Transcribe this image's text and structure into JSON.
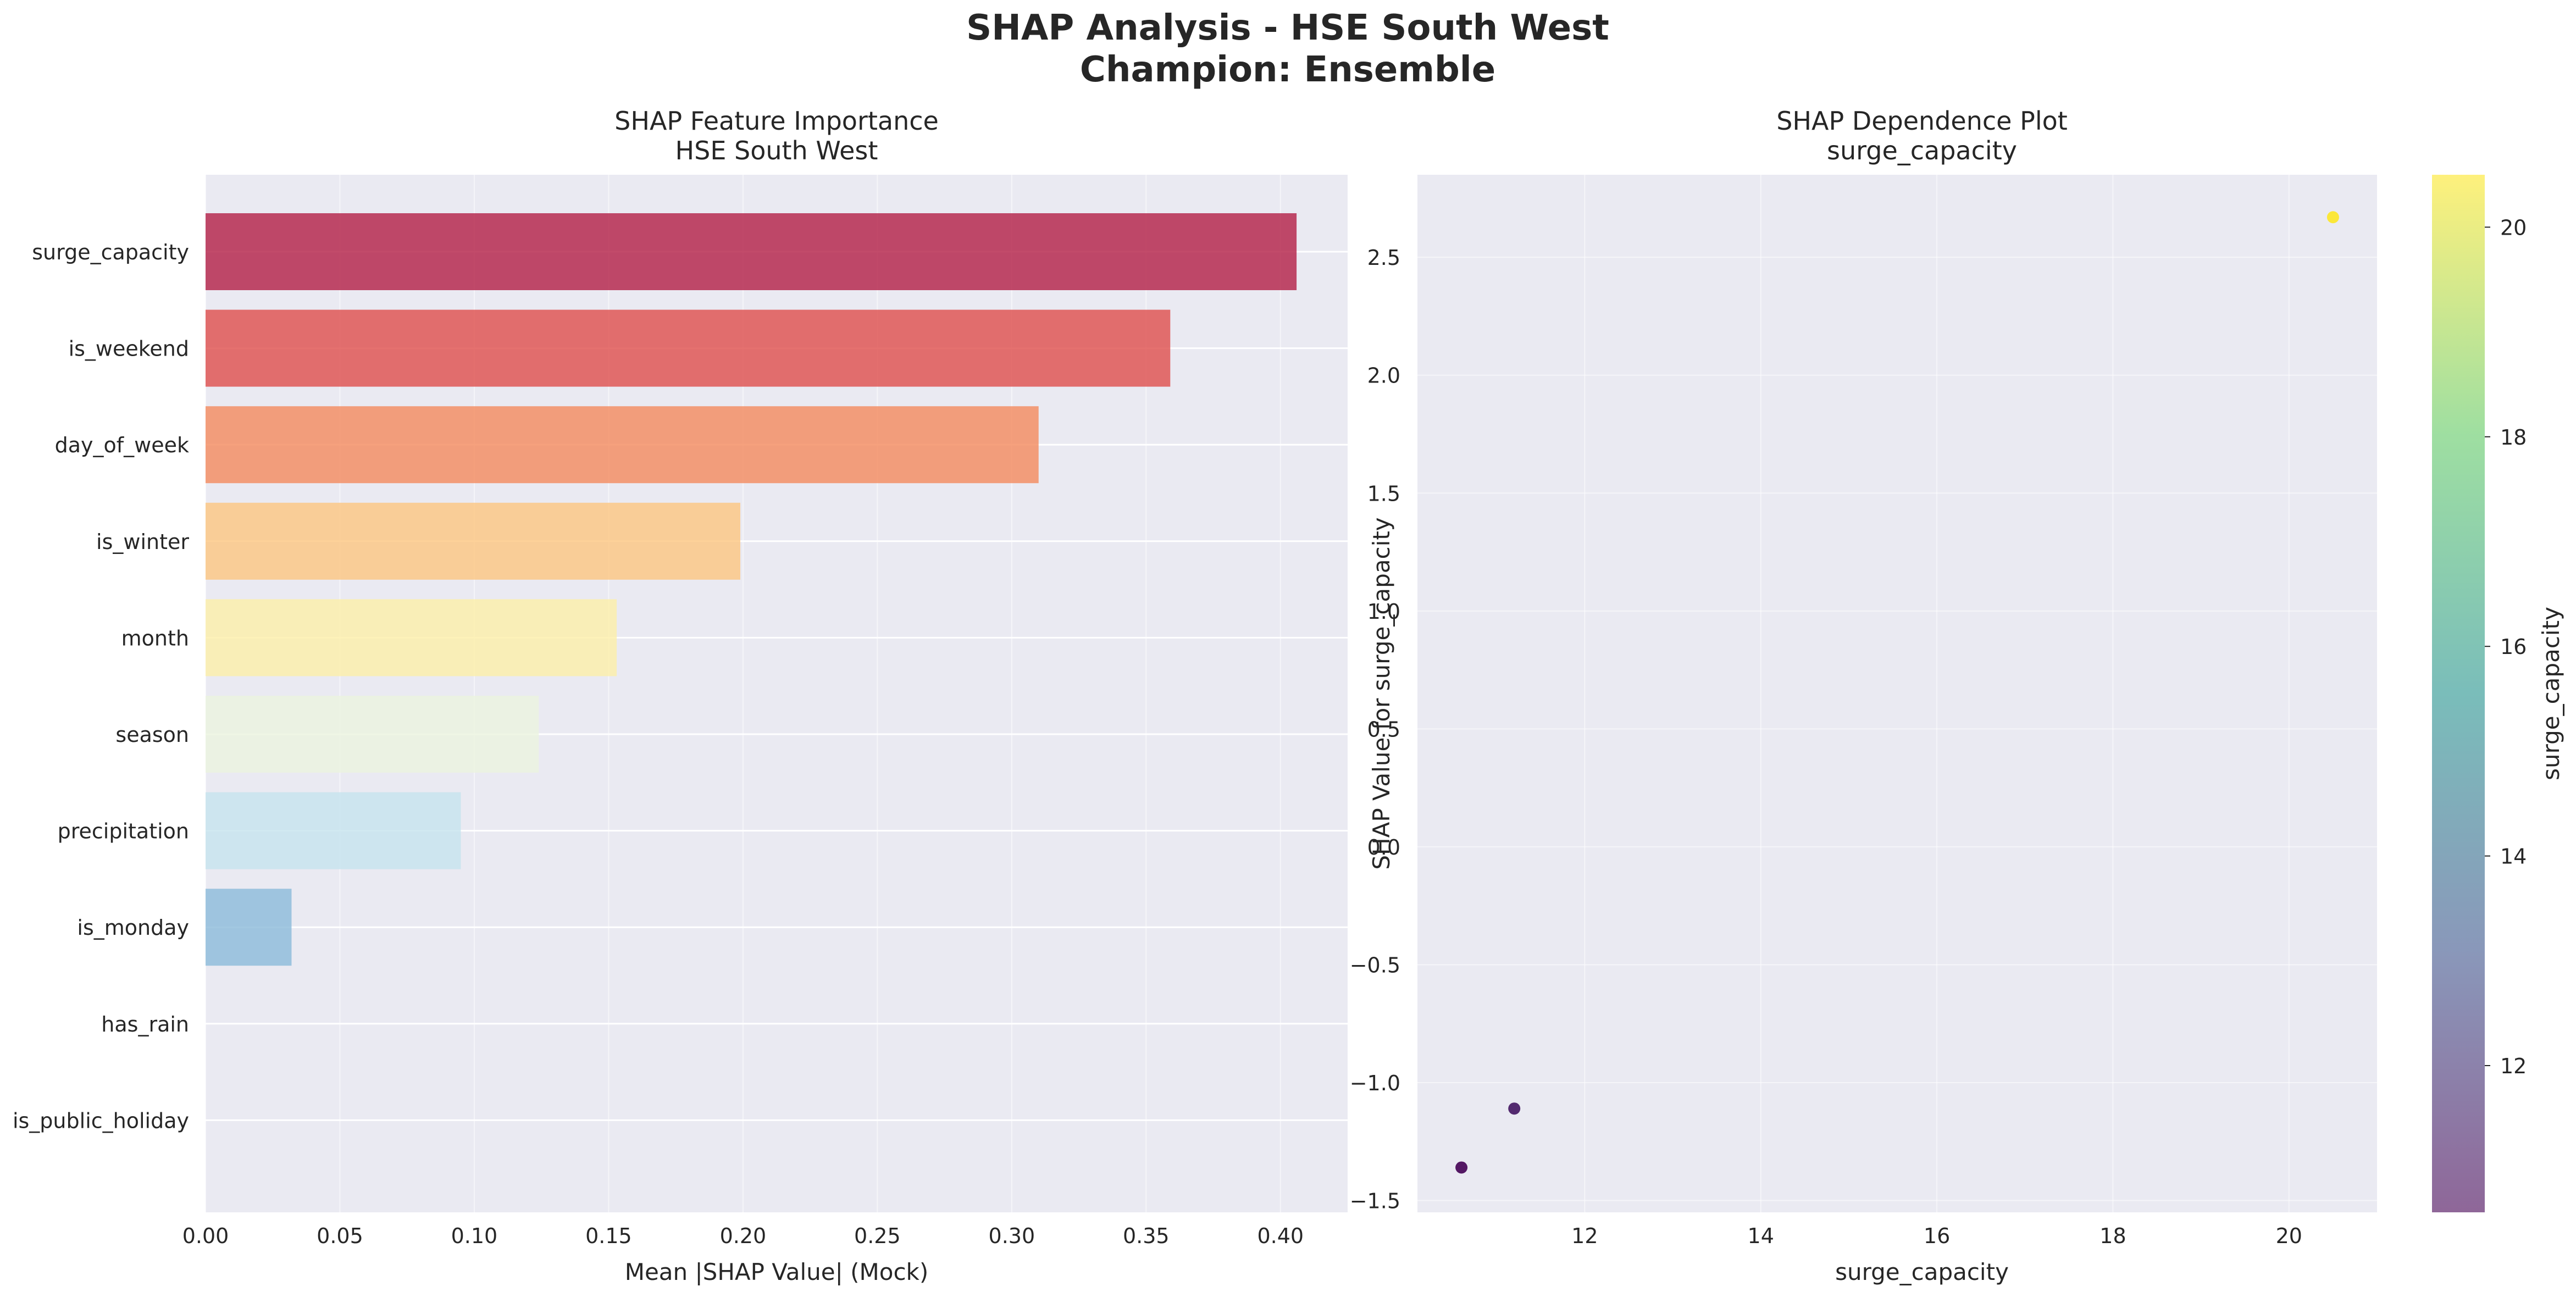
{
  "figure": {
    "suptitle_line1": "SHAP Analysis - HSE South West",
    "suptitle_line2": "Champion: Ensemble"
  },
  "chart_data": [
    {
      "type": "bar",
      "orientation": "horizontal",
      "title_line1": "SHAP Feature Importance",
      "title_line2": "HSE South West",
      "xlabel": "Mean |SHAP Value| (Mock)",
      "ylabel": "",
      "categories": [
        "surge_capacity",
        "is_weekend",
        "day_of_week",
        "is_winter",
        "month",
        "season",
        "precipitation",
        "is_monday",
        "has_rain",
        "is_public_holiday"
      ],
      "values": [
        0.406,
        0.359,
        0.31,
        0.199,
        0.153,
        0.124,
        0.095,
        0.032,
        0.0,
        0.0
      ],
      "colors": [
        "#b31e45",
        "#df4d4b",
        "#f4895d",
        "#fdc57f",
        "#fcefa7",
        "#ebf4de",
        "#c6e3ee",
        "#8bbad9",
        "#5b86bf",
        "#3e57a4"
      ],
      "bar_opacity": 0.8,
      "xlim": [
        0,
        0.425
      ],
      "xticks": [
        0.0,
        0.05,
        0.1,
        0.15,
        0.2,
        0.25,
        0.3,
        0.35,
        0.4
      ],
      "xtick_labels": [
        "0.00",
        "0.05",
        "0.10",
        "0.15",
        "0.20",
        "0.25",
        "0.30",
        "0.35",
        "0.40"
      ],
      "grid": true
    },
    {
      "type": "scatter",
      "title_line1": "SHAP Dependence Plot",
      "title_line2": "surge_capacity",
      "xlabel": "surge_capacity",
      "ylabel": "SHAP Value for surge_capacity",
      "points": [
        {
          "x": 10.6,
          "y": -1.36,
          "c": 10.6
        },
        {
          "x": 11.2,
          "y": -1.11,
          "c": 11.2
        },
        {
          "x": 20.5,
          "y": 2.67,
          "c": 20.5
        }
      ],
      "xlim": [
        10.1,
        21.0
      ],
      "ylim": [
        -1.55,
        2.85
      ],
      "xticks": [
        12,
        14,
        16,
        18,
        20
      ],
      "xtick_labels": [
        "12",
        "14",
        "16",
        "18",
        "20"
      ],
      "yticks": [
        -1.5,
        -1.0,
        -0.5,
        0.0,
        0.5,
        1.0,
        1.5,
        2.0,
        2.5
      ],
      "ytick_labels": [
        "−1.5",
        "−1.0",
        "−0.5",
        "0.0",
        "0.5",
        "1.0",
        "1.5",
        "2.0",
        "2.5"
      ],
      "colormap": "viridis",
      "point_opacity": 0.9,
      "grid": true,
      "colorbar": {
        "label": "surge_capacity",
        "range": [
          10.6,
          20.5
        ],
        "ticks": [
          12,
          14,
          16,
          18,
          20
        ],
        "tick_labels": [
          "12",
          "14",
          "16",
          "18",
          "20"
        ],
        "opacity": 0.6
      }
    }
  ],
  "style": {
    "axes_background": "#eaeaf2",
    "grid_color": "#ffffff",
    "text_color": "#262626"
  }
}
